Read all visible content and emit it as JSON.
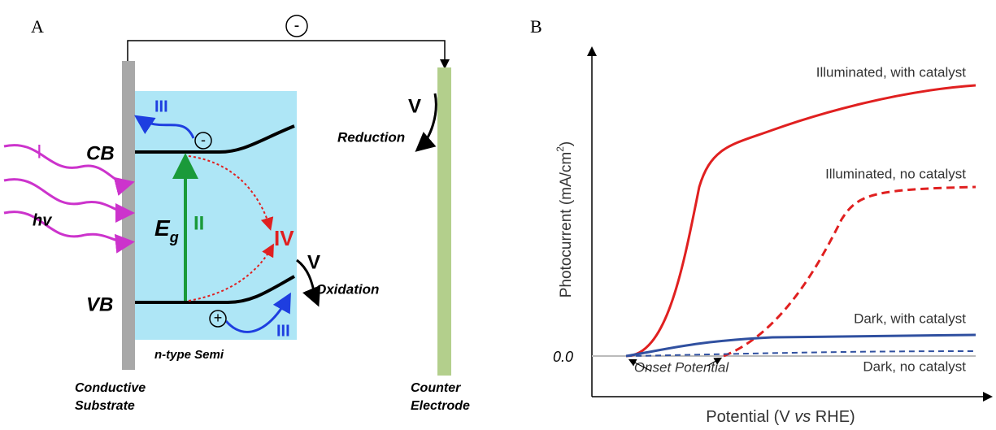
{
  "panel_a": {
    "label": "A",
    "circuit_charge": "-",
    "cb": "CB",
    "vb": "VB",
    "step_i": "I",
    "hv": "hv",
    "eg_main": "E",
    "eg_sub": "g",
    "step_ii": "II",
    "step_iii_top": "III",
    "step_iii_bottom": "III",
    "step_iv": "IV",
    "step_v_oxidation": "V",
    "oxidation": "Oxidation",
    "step_v_reduction": "V",
    "reduction": "Reduction",
    "electron": "-",
    "hole": "+",
    "semiconductor": "n-type Semi",
    "substrate": [
      "Conductive",
      "Substrate"
    ],
    "counter": [
      "Counter",
      "Electrode"
    ]
  },
  "panel_b": {
    "label": "B",
    "y_label": {
      "text": "Photocurrent (mA/cm",
      "sup": "2",
      "end": ")"
    },
    "x_label": {
      "start": "Potential (V ",
      "italic": "vs",
      "end": " RHE)"
    },
    "zero_label": "0.0",
    "curves": [
      "Illuminated, with catalyst",
      "Illuminated, no catalyst",
      "Dark, with catalyst",
      "Dark, no catalyst"
    ],
    "onset": "Onset Potential"
  }
}
